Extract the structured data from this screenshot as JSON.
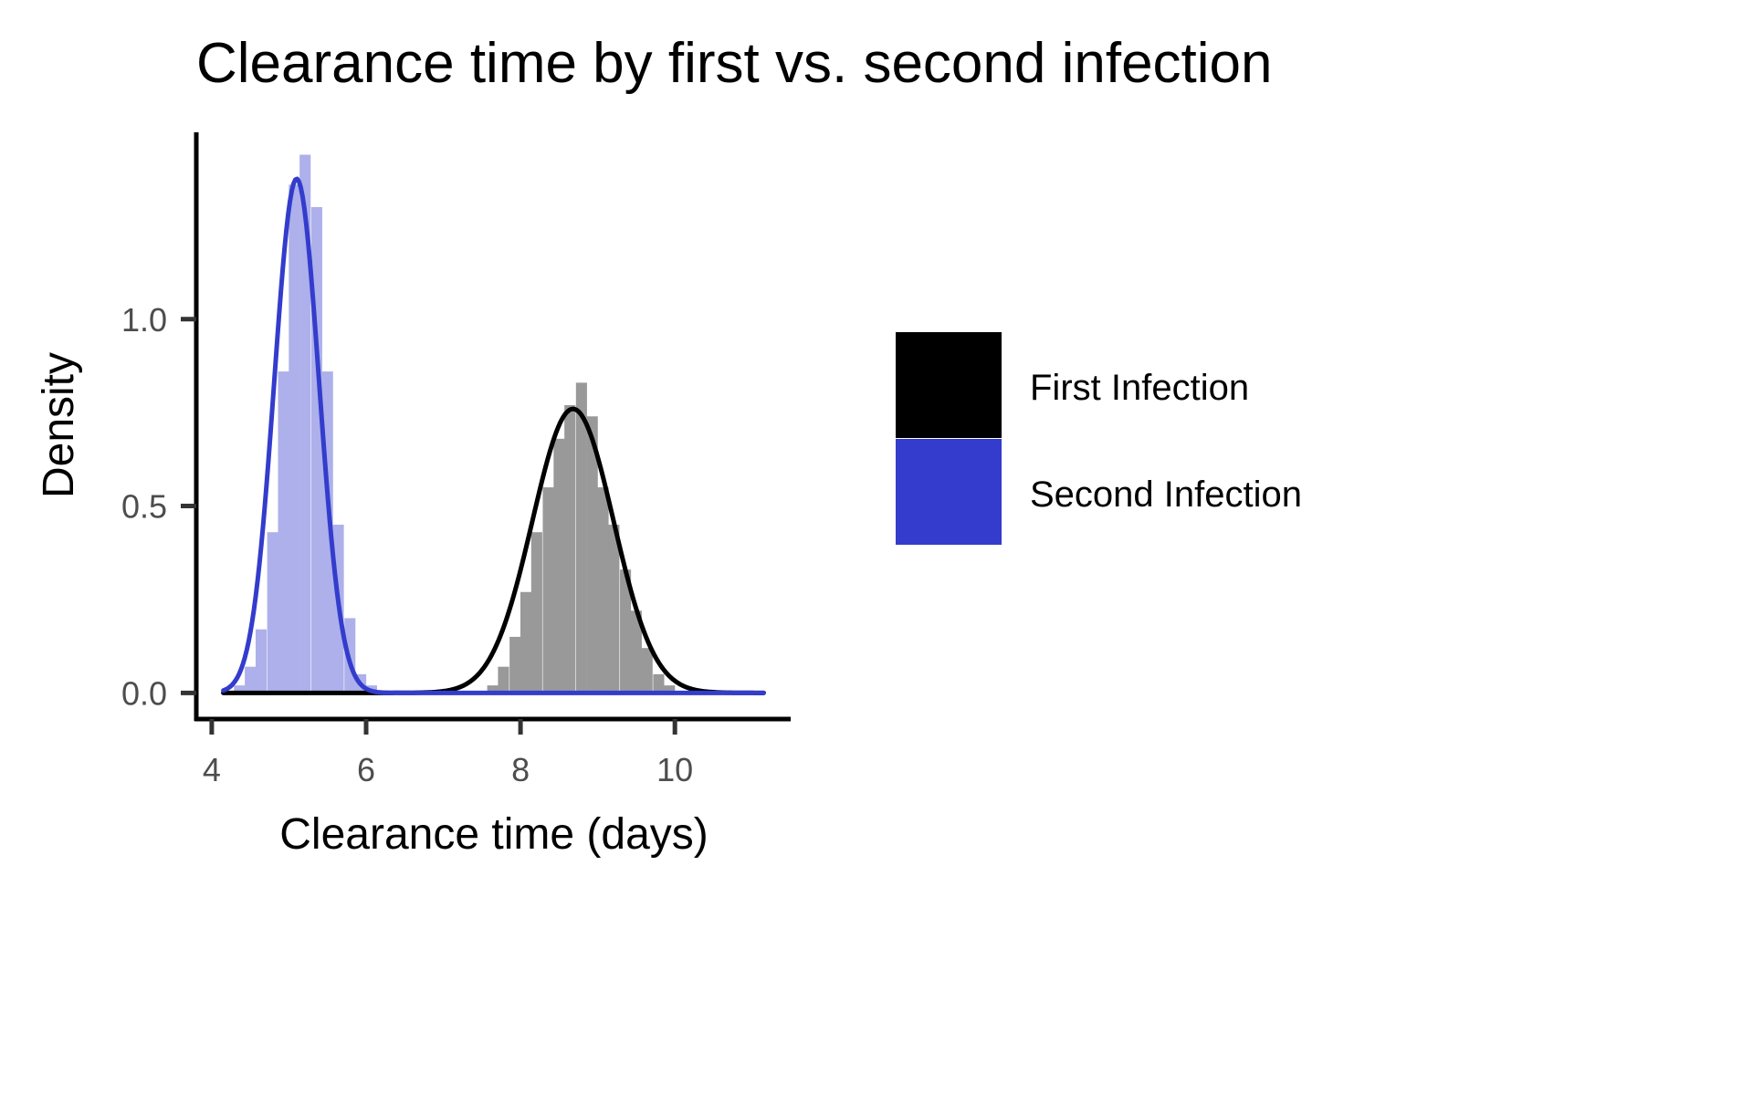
{
  "chart_data": {
    "type": "histogram",
    "title": "Clearance time by first vs. second infection",
    "xlabel": "Clearance time (days)",
    "ylabel": "Density",
    "xlim": [
      3.8,
      11.5
    ],
    "ylim": [
      -0.07,
      1.5
    ],
    "xticks": [
      4,
      6,
      8,
      10
    ],
    "yticks": [
      0.0,
      0.5,
      1.0
    ],
    "xtick_labels": [
      "4",
      "6",
      "8",
      "10"
    ],
    "ytick_labels": [
      "0.0",
      "0.5",
      "1.0"
    ],
    "grid": false,
    "legend_position": "right",
    "series": [
      {
        "name": "First Infection",
        "color": "#000000",
        "bar_color": "#999999",
        "bin_width": 0.143,
        "bins": [
          {
            "x": 7.64,
            "y": 0.02
          },
          {
            "x": 7.78,
            "y": 0.07
          },
          {
            "x": 7.93,
            "y": 0.15
          },
          {
            "x": 8.07,
            "y": 0.27
          },
          {
            "x": 8.21,
            "y": 0.43
          },
          {
            "x": 8.36,
            "y": 0.55
          },
          {
            "x": 8.5,
            "y": 0.68
          },
          {
            "x": 8.64,
            "y": 0.77
          },
          {
            "x": 8.79,
            "y": 0.83
          },
          {
            "x": 8.93,
            "y": 0.74
          },
          {
            "x": 9.07,
            "y": 0.55
          },
          {
            "x": 9.21,
            "y": 0.45
          },
          {
            "x": 9.36,
            "y": 0.33
          },
          {
            "x": 9.5,
            "y": 0.22
          },
          {
            "x": 9.64,
            "y": 0.12
          },
          {
            "x": 9.79,
            "y": 0.05
          },
          {
            "x": 9.93,
            "y": 0.02
          }
        ],
        "curve_mean": 8.68,
        "curve_sd": 0.525,
        "curve_range": [
          4.15,
          11.15
        ]
      },
      {
        "name": "Second Infection",
        "color": "#333ccc",
        "bar_color": "#adb0ea",
        "bin_width": 0.143,
        "bins": [
          {
            "x": 4.36,
            "y": 0.02
          },
          {
            "x": 4.5,
            "y": 0.07
          },
          {
            "x": 4.64,
            "y": 0.17
          },
          {
            "x": 4.79,
            "y": 0.43
          },
          {
            "x": 4.93,
            "y": 0.86
          },
          {
            "x": 5.07,
            "y": 1.36
          },
          {
            "x": 5.21,
            "y": 1.44
          },
          {
            "x": 5.36,
            "y": 1.3
          },
          {
            "x": 5.5,
            "y": 0.86
          },
          {
            "x": 5.64,
            "y": 0.45
          },
          {
            "x": 5.79,
            "y": 0.2
          },
          {
            "x": 5.93,
            "y": 0.05
          },
          {
            "x": 6.07,
            "y": 0.02
          }
        ],
        "curve_mean": 5.1,
        "curve_sd": 0.29,
        "curve_range": [
          4.15,
          11.15
        ]
      }
    ]
  }
}
